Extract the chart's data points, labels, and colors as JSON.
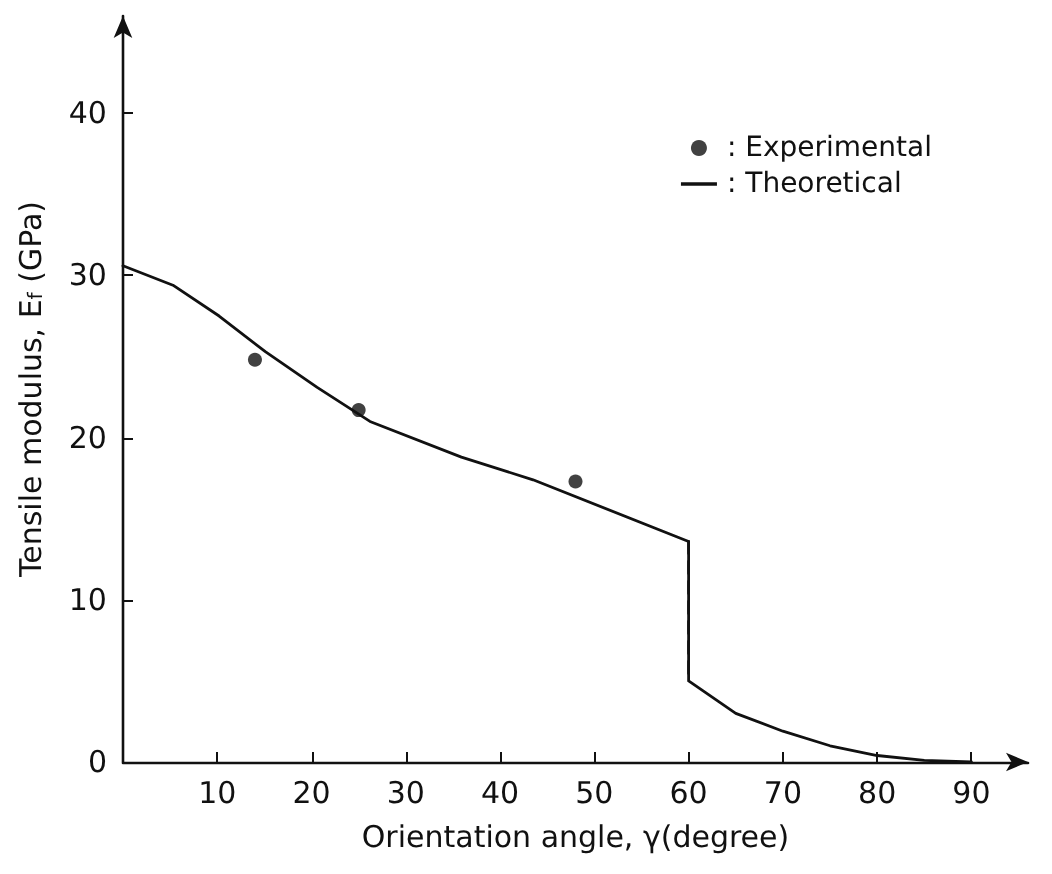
{
  "chart_data": {
    "type": "line",
    "xlabel": "Orientation angle, γ(degree)",
    "ylabel": "Tensile modulus, E$_{f}$ (GPa)",
    "xlim": [
      0,
      96
    ],
    "xticks": [
      10,
      20,
      30,
      40,
      50,
      60,
      70,
      80,
      90
    ],
    "ylim": [
      0,
      46
    ],
    "yticks": [
      0,
      10,
      20,
      30,
      40
    ],
    "grid": false,
    "legend": "top right",
    "series": [
      {
        "name": ": Experimental",
        "type": "scatter",
        "marker": "circle",
        "color": "#111111",
        "x": [
          14,
          25,
          48
        ],
        "values": [
          24.8,
          21.7,
          17.3
        ]
      },
      {
        "name": ": Theoretical",
        "marker": "none",
        "line_style": "solid",
        "color": "#111111",
        "x": [
          0,
          5.3,
          10.2,
          15.1,
          20.6,
          26.2,
          35.9,
          43.5,
          60,
          60,
          65,
          70,
          75,
          80,
          85,
          90
        ],
        "values": [
          30.6,
          29.4,
          27.5,
          25.3,
          23.1,
          21.0,
          18.8,
          17.4,
          13.6,
          5.0,
          3.0,
          1.9,
          1.0,
          0.4,
          0.1,
          0
        ]
      },
      {
        "marker": "none",
        "line_style": "dashed",
        "color": "#111111",
        "x": [
          60,
          60
        ],
        "values": [
          13.6,
          5.0
        ]
      }
    ]
  }
}
